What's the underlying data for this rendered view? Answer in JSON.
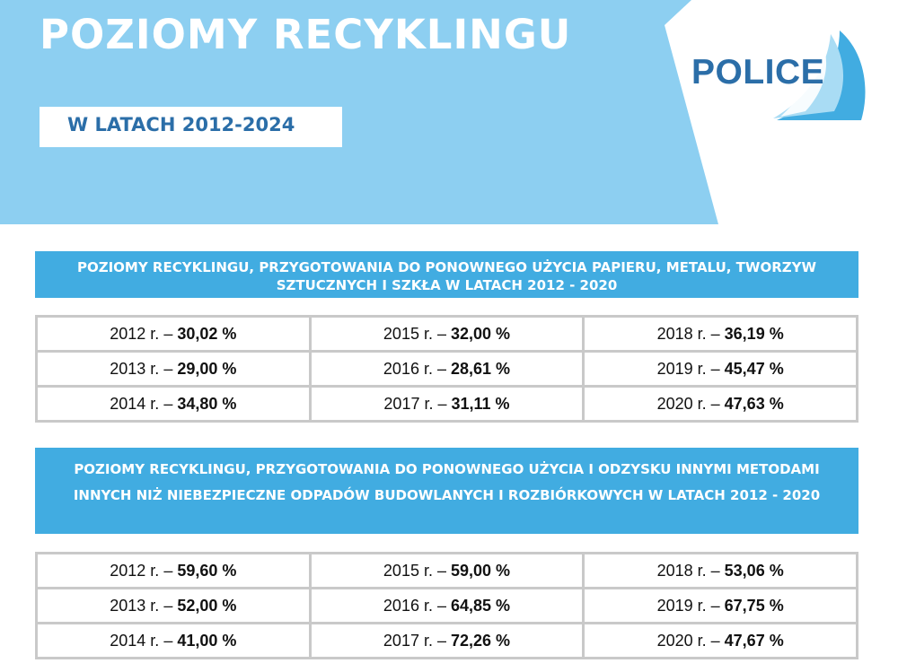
{
  "header": {
    "title": "POZIOMY RECYKLINGU",
    "subtitle": "W LATACH 2012-2024",
    "logo_text": "POLICE"
  },
  "colors": {
    "banner": "#8dcff1",
    "section_header": "#41ace1",
    "accent_text": "#2b6ea8",
    "grid_border": "#c9c9c9"
  },
  "sections": [
    {
      "title": "POZIOMY RECYKLINGU, PRZYGOTOWANIA DO PONOWNEGO UŻYCIA PAPIERU, METALU, TWORZYW SZTUCZNYCH I SZKŁA W LATACH 2012 - 2020",
      "rows": [
        [
          {
            "year": "2012 r. – ",
            "value": "30,02 %"
          },
          {
            "year": "2015 r. – ",
            "value": "32,00 %"
          },
          {
            "year": "2018 r. – ",
            "value": "36,19 %"
          }
        ],
        [
          {
            "year": "2013 r. – ",
            "value": "29,00 %"
          },
          {
            "year": "2016 r. – ",
            "value": "28,61 %"
          },
          {
            "year": "2019 r. – ",
            "value": "45,47 %"
          }
        ],
        [
          {
            "year": "2014 r. – ",
            "value": "34,80 %"
          },
          {
            "year": "2017 r. – ",
            "value": "31,11 %"
          },
          {
            "year": "2020 r. – ",
            "value": "47,63 %"
          }
        ]
      ]
    },
    {
      "title": "POZIOMY RECYKLINGU, PRZYGOTOWANIA DO PONOWNEGO UŻYCIA I ODZYSKU INNYMI METODAMI INNYCH NIŻ NIEBEZPIECZNE ODPADÓW BUDOWLANYCH I ROZBIÓRKOWYCH W LATACH 2012 - 2020",
      "rows": [
        [
          {
            "year": "2012 r. – ",
            "value": "59,60 %"
          },
          {
            "year": "2015 r. – ",
            "value": "59,00 %"
          },
          {
            "year": "2018 r. – ",
            "value": "53,06 %"
          }
        ],
        [
          {
            "year": "2013 r. – ",
            "value": "52,00 %"
          },
          {
            "year": "2016 r. – ",
            "value": "64,85 %"
          },
          {
            "year": "2019 r. – ",
            "value": "67,75 %"
          }
        ],
        [
          {
            "year": "2014 r. – ",
            "value": "41,00 %"
          },
          {
            "year": "2017 r. – ",
            "value": "72,26 %"
          },
          {
            "year": "2020 r. – ",
            "value": "47,67 %"
          }
        ]
      ]
    }
  ]
}
